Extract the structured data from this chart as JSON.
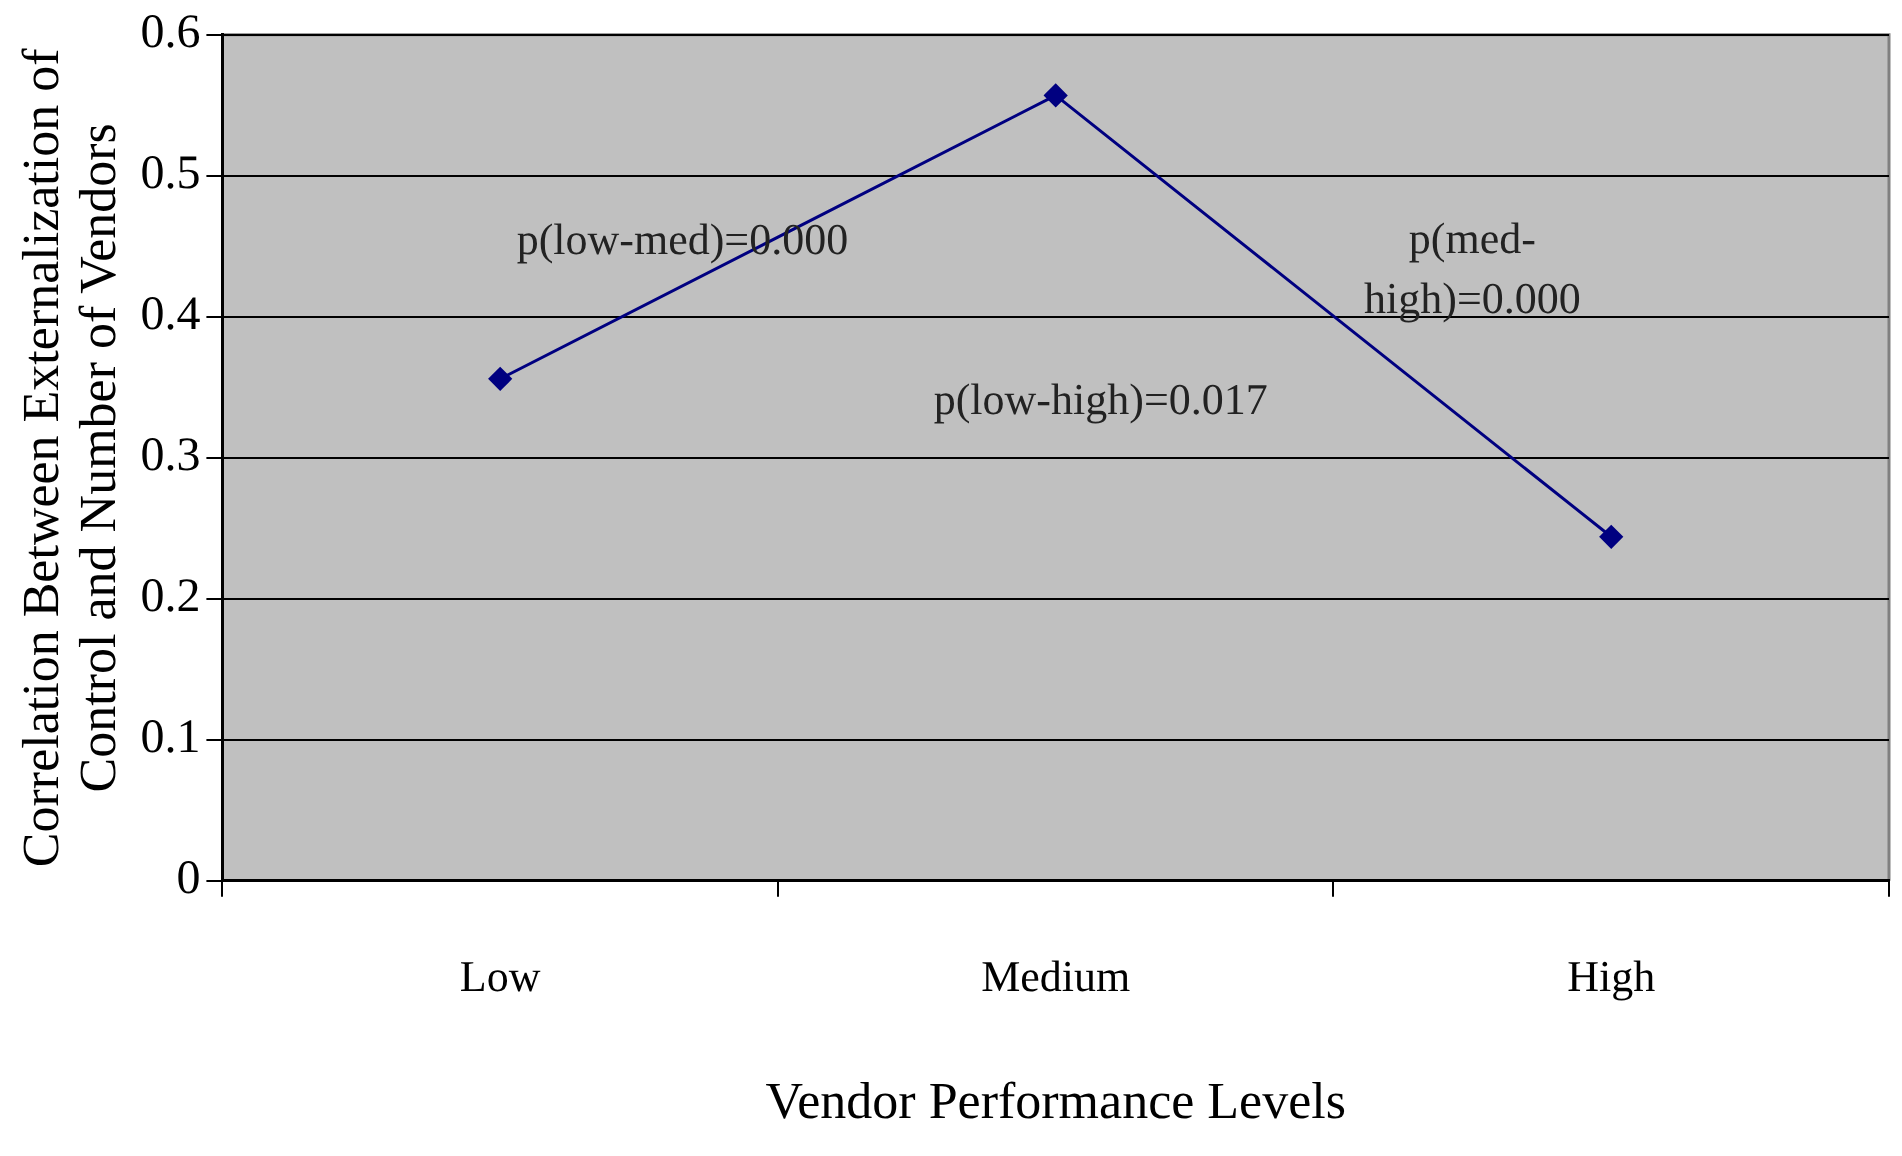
{
  "chart_data": {
    "type": "line",
    "xlabel": "Vendor Performance Levels",
    "ylabel": "Correlation Between Externalization of Control and Number of Vendors",
    "categories": [
      "Low",
      "Medium",
      "High"
    ],
    "series": [
      {
        "color": "#000080",
        "values": [
          0.356,
          0.557,
          0.244
        ]
      }
    ],
    "ylim": [
      0,
      0.6
    ],
    "yticks": [
      0,
      0.1,
      0.2,
      0.3,
      0.4,
      0.5,
      0.6
    ],
    "grid": "y",
    "legend": false,
    "marker": "diamond",
    "line_style": "solid",
    "annotations": [
      "p(low-med)=0.000",
      "p(med-high)=0.000",
      "p(low-high)=0.017"
    ]
  }
}
